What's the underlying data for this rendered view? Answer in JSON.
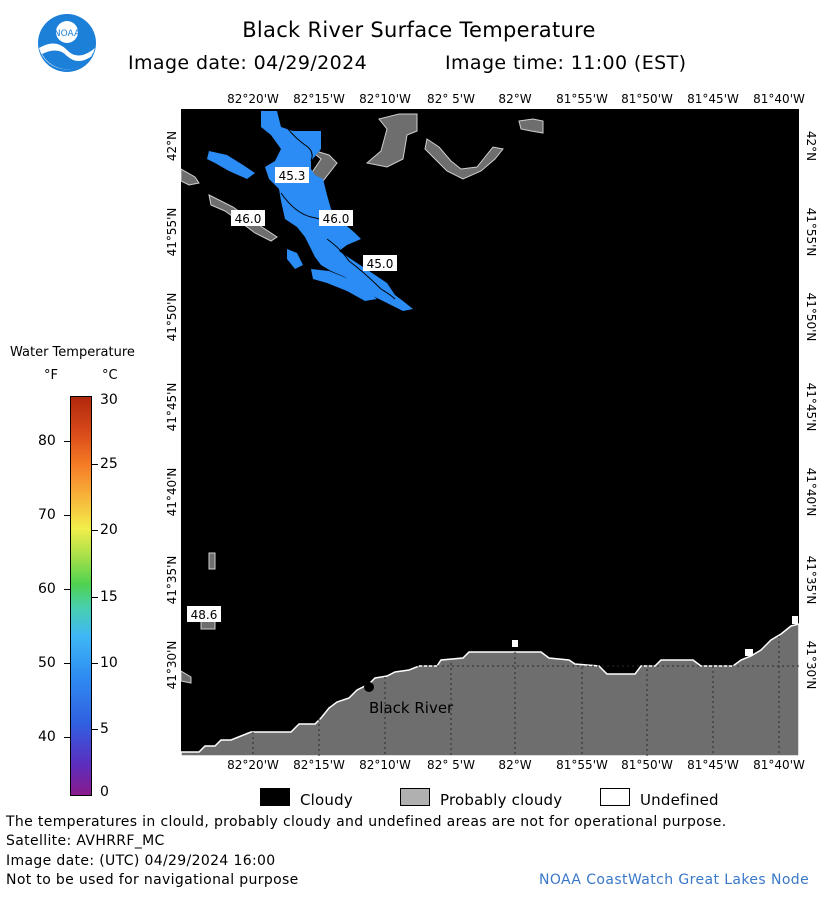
{
  "header": {
    "title": "Black River Surface Temperature",
    "image_date": "Image date: 04/29/2024",
    "image_time": "Image time: 11:00 (EST)"
  },
  "logo": {
    "name": "noaa-logo",
    "text": "NOAA"
  },
  "map": {
    "longitude_labels": [
      "82°20'W",
      "82°15'W",
      "82°10'W",
      "82° 5'W",
      "82°W",
      "81°55'W",
      "81°50'W",
      "81°45'W",
      "81°40'W"
    ],
    "latitude_labels": [
      "42°N",
      "41°55'N",
      "41°50'N",
      "41°45'N",
      "41°40'N",
      "41°35'N",
      "41°30'N"
    ],
    "contour_labels": [
      "45.3",
      "46.0",
      "46.0",
      "45.0",
      "48.6"
    ],
    "place_label": "Black River",
    "colors": {
      "cloud": "#000000",
      "probably_cloudy": "#6e6e6e",
      "undefined": "#ffffff",
      "water_45": "#2a8cf4",
      "water_46": "#2f90f4"
    }
  },
  "legend": {
    "title": "Water Temperature",
    "unit_f": "°F",
    "unit_c": "°C",
    "f_ticks": [
      "80",
      "70",
      "60",
      "50",
      "40"
    ],
    "c_ticks": [
      "30",
      "25",
      "20",
      "15",
      "10",
      "5",
      "0"
    ]
  },
  "key": {
    "cloudy": "Cloudy",
    "probably_cloudy": "Probably cloudy",
    "undefined": "Undefined"
  },
  "footer": {
    "disclaimer": "The temperatures in clould, probably cloudy and undefined areas are not for operational purpose.",
    "satellite": "Satellite: AVHRRF_MC",
    "utc_date": "Image date: (UTC) 04/29/2024  16:00",
    "navigation": "Not to be used for navigational purpose",
    "credit": "NOAA CoastWatch Great Lakes Node"
  }
}
